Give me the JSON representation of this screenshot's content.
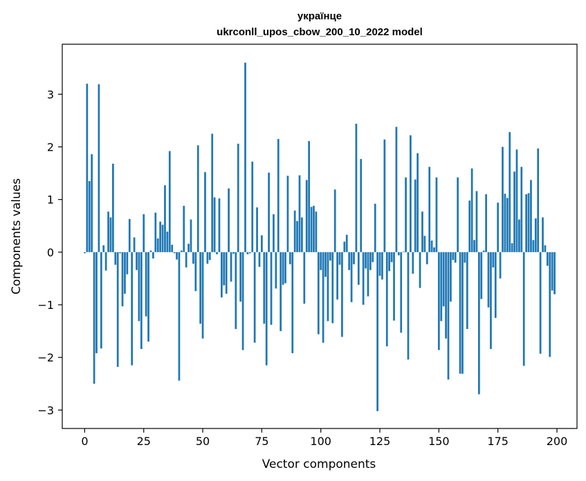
{
  "chart_data": {
    "type": "bar",
    "title": "українце",
    "subtitle": "ukrconll_upos_cbow_200_10_2022 model",
    "xlabel": "Vector components",
    "ylabel": "Components values",
    "xlim": [
      -9.5,
      208.5
    ],
    "ylim": [
      -3.35,
      3.95
    ],
    "x_ticks": [
      0,
      25,
      50,
      75,
      100,
      125,
      150,
      175,
      200
    ],
    "y_ticks": [
      -3,
      -2,
      -1,
      0,
      1,
      2,
      3
    ],
    "x_tick_labels": [
      "0",
      "25",
      "50",
      "75",
      "100",
      "125",
      "150",
      "175",
      "200"
    ],
    "y_tick_labels": [
      "−3",
      "−2",
      "−1",
      "0",
      "1",
      "2",
      "3"
    ],
    "grid": false,
    "bar_color": "#1f77b4",
    "values": [
      -0.02,
      3.2,
      1.35,
      1.86,
      -2.5,
      -1.92,
      3.19,
      -1.83,
      0.13,
      -0.35,
      0.77,
      0.66,
      1.68,
      -0.24,
      -2.18,
      -0.02,
      -1.03,
      -0.79,
      -0.42,
      0.63,
      -2.15,
      0.28,
      -0.34,
      -1.31,
      -1.84,
      0.72,
      -1.22,
      -1.7,
      0.03,
      -0.12,
      0.75,
      0.26,
      0.58,
      0.52,
      1.27,
      0.39,
      1.92,
      0.14,
      -0.02,
      -0.14,
      -2.44,
      0.03,
      0.88,
      -0.29,
      0.16,
      0.62,
      -0.22,
      -0.74,
      2.03,
      -1.36,
      -1.64,
      1.52,
      -0.22,
      -0.15,
      2.25,
      1.04,
      -0.04,
      1.02,
      -0.86,
      -0.63,
      -0.79,
      1.21,
      -0.56,
      -0.03,
      -1.46,
      2.06,
      -0.94,
      -1.86,
      3.6,
      -0.04,
      -0.02,
      1.72,
      -1.72,
      0.85,
      -0.28,
      0.32,
      -1.36,
      -2.15,
      1.51,
      -1.38,
      0.72,
      -0.69,
      2.15,
      -1.5,
      -0.62,
      -0.59,
      1.45,
      -0.23,
      -1.92,
      0.79,
      0.59,
      1.46,
      0.66,
      -0.98,
      1.37,
      2.11,
      0.86,
      0.88,
      0.77,
      -1.56,
      -0.34,
      -1.72,
      -0.47,
      -1.31,
      -0.16,
      -1.35,
      1.19,
      -0.9,
      -0.24,
      -1.61,
      0.2,
      0.33,
      -0.34,
      -0.95,
      -0.23,
      2.44,
      -0.62,
      1.77,
      -1.0,
      -0.31,
      -0.84,
      -0.34,
      -0.19,
      0.92,
      -3.02,
      -0.45,
      -0.52,
      2.14,
      -1.79,
      -0.36,
      -0.19,
      -1.3,
      2.38,
      -0.06,
      -1.53,
      0.01,
      1.42,
      -2.04,
      2.22,
      -0.41,
      1.38,
      1.88,
      -0.68,
      0.77,
      0.31,
      -0.23,
      1.62,
      0.22,
      0.09,
      1.42,
      -1.86,
      -1.31,
      -1.03,
      -1.64,
      -2.42,
      -0.94,
      -0.15,
      -0.2,
      1.42,
      -2.31,
      -2.31,
      -0.2,
      -1.46,
      0.98,
      1.59,
      0.23,
      1.16,
      -2.7,
      -0.89,
      0.03,
      1.1,
      -1.05,
      -1.84,
      -0.29,
      -1.25,
      0.94,
      -0.5,
      2.0,
      1.11,
      1.03,
      2.28,
      0.17,
      1.53,
      1.95,
      0.62,
      1.62,
      -2.16,
      1.1,
      1.12,
      1.37,
      0.23,
      0.64,
      1.97,
      -1.93,
      0.66,
      0.13,
      -0.26,
      -1.99,
      -0.73,
      -0.8
    ]
  }
}
